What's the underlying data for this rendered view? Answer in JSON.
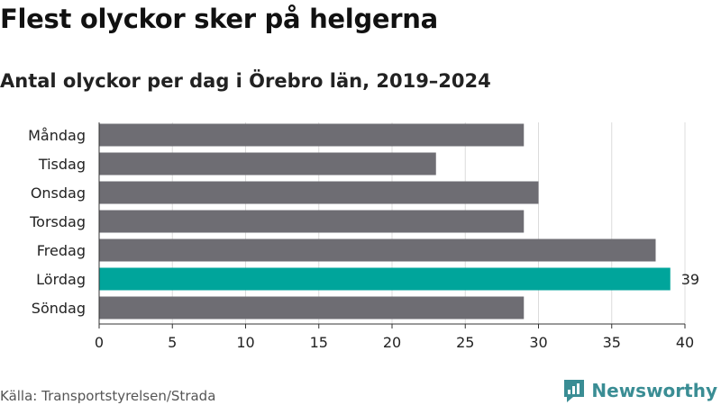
{
  "title": "Flest olyckor sker på helgerna",
  "subtitle": "Antal olyckor per dag i Örebro län, 2019–2024",
  "source": "Källa: Transportstyrelsen/Strada",
  "logo_text": "Newsworthy",
  "colors": {
    "bar": "#6e6d73",
    "highlight": "#00a59b",
    "grid": "#dcdcdc",
    "axis": "#333333",
    "logo": "#3a8d94"
  },
  "chart_data": {
    "type": "bar",
    "orientation": "horizontal",
    "categories": [
      "Måndag",
      "Tisdag",
      "Onsdag",
      "Torsdag",
      "Fredag",
      "Lördag",
      "Söndag"
    ],
    "values": [
      29,
      23,
      30,
      29,
      38,
      39,
      29
    ],
    "highlight_index": 5,
    "data_labels": [
      {
        "index": 5,
        "text": "39"
      }
    ],
    "xlim": [
      0,
      40
    ],
    "xticks": [
      0,
      5,
      10,
      15,
      20,
      25,
      30,
      35,
      40
    ],
    "grid": "vertical"
  }
}
